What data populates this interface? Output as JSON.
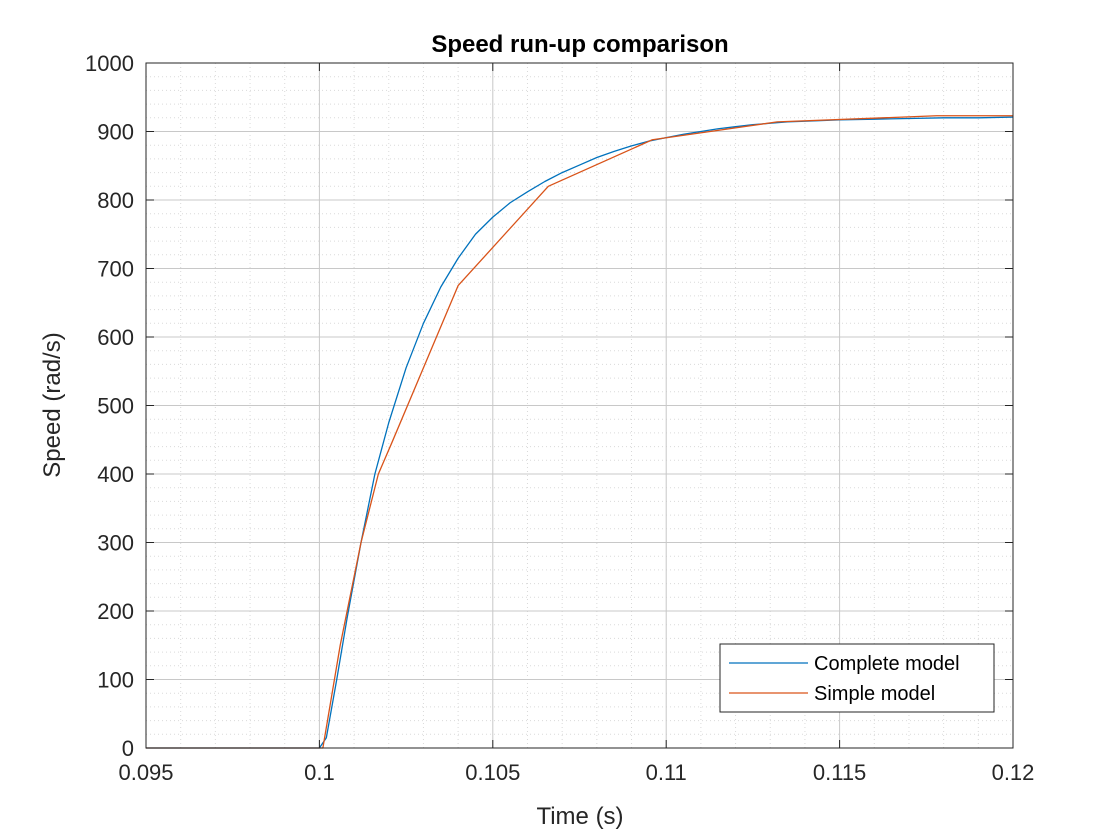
{
  "chart_data": {
    "type": "line",
    "title": "Speed run-up comparison",
    "xlabel": "Time (s)",
    "ylabel": "Speed (rad/s)",
    "xlim": [
      0.095,
      0.12
    ],
    "ylim": [
      0,
      1000
    ],
    "x_ticks": [
      0.095,
      0.1,
      0.105,
      0.11,
      0.115,
      0.12
    ],
    "x_tick_labels": [
      "0.095",
      "0.1",
      "0.105",
      "0.11",
      "0.115",
      "0.12"
    ],
    "y_ticks": [
      0,
      100,
      200,
      300,
      400,
      500,
      600,
      700,
      800,
      900,
      1000
    ],
    "y_tick_labels": [
      "0",
      "100",
      "200",
      "300",
      "400",
      "500",
      "600",
      "700",
      "800",
      "900",
      "1000"
    ],
    "grid": "major and minor (dotted)",
    "legend_position": "bottom-right",
    "series": [
      {
        "name": "Complete model",
        "color": "#0072BD",
        "x": [
          0.095,
          0.1,
          0.1002,
          0.1005,
          0.1008,
          0.1012,
          0.1016,
          0.102,
          0.1025,
          0.103,
          0.1035,
          0.104,
          0.1045,
          0.105,
          0.1055,
          0.106,
          0.1065,
          0.107,
          0.1075,
          0.108,
          0.1085,
          0.109,
          0.1095,
          0.11,
          0.1105,
          0.111,
          0.1115,
          0.112,
          0.1125,
          0.113,
          0.1135,
          0.114,
          0.115,
          0.116,
          0.117,
          0.118,
          0.119,
          0.12
        ],
        "y": [
          0,
          0,
          15,
          100,
          190,
          300,
          400,
          475,
          555,
          620,
          673,
          715,
          750,
          775,
          796,
          812,
          827,
          840,
          851,
          862,
          871,
          879,
          886,
          891,
          896,
          900,
          904,
          907,
          910,
          912,
          914,
          915,
          917,
          918,
          919,
          920,
          920,
          921
        ]
      },
      {
        "name": "Simple model",
        "color": "#D95319",
        "x": [
          0.095,
          0.1,
          0.1001,
          0.1006,
          0.1012,
          0.1017,
          0.1021,
          0.104,
          0.1066,
          0.1096,
          0.1132,
          0.1178,
          0.12
        ],
        "y": [
          0,
          0,
          0,
          150,
          300,
          400,
          447,
          675,
          820,
          888,
          914,
          923,
          923
        ]
      }
    ]
  }
}
